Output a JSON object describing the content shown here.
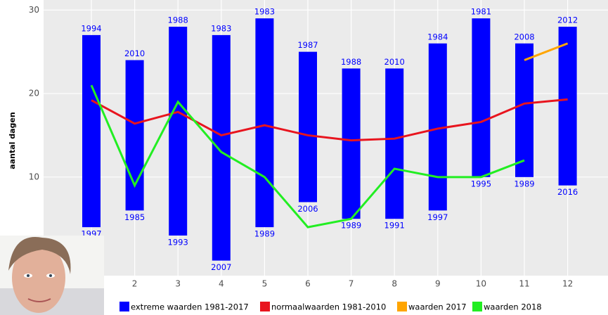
{
  "chart_data": {
    "type": "range-bar-line",
    "y_label": "aantal dagen",
    "categories": [
      null,
      "2",
      "3",
      "4",
      "5",
      "6",
      "7",
      "8",
      "9",
      "10",
      "11",
      "12"
    ],
    "ylim": [
      -1.8,
      31.2
    ],
    "yticks": [
      10,
      20,
      30
    ],
    "grid": true,
    "bars": {
      "name": "extreme waarden 1981-2017",
      "color": "#0000ff",
      "low": [
        4,
        6,
        3,
        0,
        4,
        7,
        5,
        5,
        6,
        10,
        10,
        9
      ],
      "high": [
        27,
        24,
        28,
        27,
        29,
        25,
        23,
        23,
        26,
        29,
        26,
        28
      ],
      "low_labels": [
        "1997",
        "1985",
        "1993",
        "2007",
        "1989",
        "2006",
        "1989",
        "1991",
        "1997",
        "1995",
        "1989",
        "2016"
      ],
      "high_labels": [
        "1994",
        "2010",
        "1988",
        "1983",
        "1983",
        "1987",
        "1988",
        "2010",
        "1984",
        "1981",
        "2008",
        "2012"
      ]
    },
    "series": [
      {
        "name": "normaalwaarden 1981-2010",
        "color": "#e8141e",
        "values": [
          19.2,
          16.4,
          17.8,
          15,
          16.2,
          15,
          14.4,
          14.6,
          15.8,
          16.6,
          18.8,
          19.3
        ]
      },
      {
        "name": "waarden 2017",
        "color": "#ffa500",
        "values": [
          null,
          null,
          null,
          null,
          null,
          null,
          null,
          null,
          null,
          null,
          24,
          26
        ]
      },
      {
        "name": "waarden 2018",
        "color": "#22ee22",
        "values": [
          21,
          9,
          19,
          13,
          10,
          4,
          5,
          11,
          10,
          10,
          12,
          null
        ]
      }
    ]
  }
}
